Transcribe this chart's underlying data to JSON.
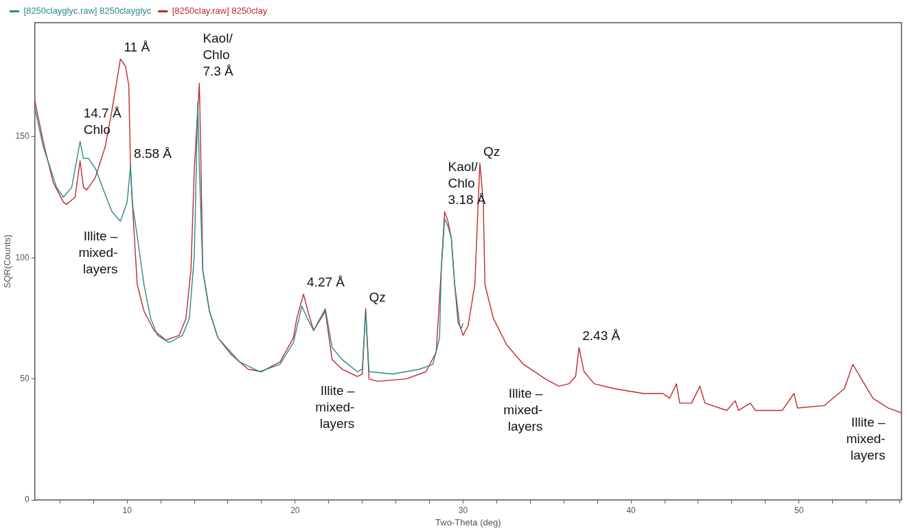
{
  "chart_data": {
    "type": "line",
    "xlabel": "Two-Theta (deg)",
    "ylabel": "SQR(Counts)",
    "xlim": [
      4.5,
      56.1
    ],
    "ylim": [
      0,
      197
    ],
    "xticks": [
      {
        "value": 6,
        "label": null
      },
      {
        "value": 8,
        "label": null
      },
      10,
      {
        "value": 12,
        "label": null
      },
      {
        "value": 14,
        "label": null
      },
      {
        "value": 16,
        "label": null
      },
      {
        "value": 18,
        "label": null
      },
      20,
      {
        "value": 22,
        "label": null
      },
      {
        "value": 24,
        "label": null
      },
      {
        "value": 26,
        "label": null
      },
      {
        "value": 28,
        "label": null
      },
      30,
      {
        "value": 32,
        "label": null
      },
      {
        "value": 34,
        "label": null
      },
      {
        "value": 36,
        "label": null
      },
      {
        "value": 38,
        "label": null
      },
      40,
      {
        "value": 42,
        "label": null
      },
      {
        "value": 44,
        "label": null
      },
      {
        "value": 46,
        "label": null
      },
      {
        "value": 48,
        "label": null
      },
      50,
      {
        "value": 52,
        "label": null
      },
      {
        "value": 54,
        "label": null
      },
      {
        "value": 56,
        "label": null
      }
    ],
    "yticks": [
      0,
      50,
      100,
      150
    ],
    "grid": false,
    "legend": "top left",
    "marker": "none",
    "line_style": "solid",
    "series": [
      {
        "name": "[8250clayglyc.raw] 8250clayglyc",
        "color": "#2a8a86",
        "x": [
          4.5,
          5.0,
          5.8,
          6.2,
          6.7,
          7.2,
          7.4,
          7.7,
          8.1,
          8.7,
          9.1,
          9.6,
          10.0,
          10.2,
          10.3,
          10.6,
          11.0,
          11.4,
          11.8,
          12.5,
          13.3,
          13.7,
          14.0,
          14.2,
          14.3,
          14.5,
          14.9,
          15.4,
          16.7,
          17.9,
          19.1,
          19.9,
          20.4,
          20.8,
          21.1,
          21.8,
          22.2,
          22.8,
          23.7,
          24.0,
          24.2,
          24.4,
          25.8,
          27.4,
          28.2,
          28.6,
          28.7,
          28.9,
          29.1,
          29.3,
          29.5,
          29.7,
          29.9,
          30.0
        ],
        "values": [
          162,
          146,
          129,
          125,
          129,
          148,
          141,
          141,
          137,
          126,
          119,
          115,
          123,
          138,
          123,
          109,
          89,
          75,
          68,
          65,
          68,
          75,
          101,
          164,
          137,
          95,
          78,
          67,
          57,
          53,
          56,
          65,
          80,
          74,
          70,
          79,
          63,
          58,
          53,
          54,
          78,
          53,
          52,
          54,
          56,
          67,
          95,
          116,
          113,
          108,
          89,
          73,
          71,
          73
        ]
      },
      {
        "name": "[8250clay.raw] 8250clay",
        "color": "#c1272d",
        "x": [
          4.5,
          5.0,
          5.6,
          6.2,
          6.4,
          6.9,
          7.2,
          7.4,
          7.6,
          8.1,
          8.7,
          9.1,
          9.6,
          9.9,
          10.1,
          10.2,
          10.4,
          10.6,
          11.0,
          11.6,
          12.3,
          13.1,
          13.5,
          13.8,
          14.0,
          14.3,
          14.4,
          14.5,
          14.9,
          15.4,
          16.2,
          17.2,
          18.0,
          19.1,
          19.9,
          20.1,
          20.5,
          20.8,
          21.1,
          21.8,
          22.2,
          22.8,
          23.7,
          24.0,
          24.2,
          24.4,
          24.9,
          26.6,
          27.8,
          28.4,
          28.7,
          28.9,
          29.1,
          29.3,
          29.5,
          29.8,
          30.0,
          30.3,
          30.7,
          30.9,
          31.0,
          31.2,
          31.3,
          31.8,
          32.6,
          33.6,
          34.9,
          35.7,
          36.3,
          36.7,
          36.9,
          37.2,
          37.8,
          39.0,
          40.7,
          41.9,
          42.3,
          42.7,
          42.9,
          43.6,
          44.1,
          44.4,
          45.7,
          46.2,
          46.4,
          47.1,
          47.4,
          49.0,
          49.7,
          49.9,
          51.5,
          52.7,
          53.2,
          53.8,
          54.4,
          55.3,
          56.1
        ],
        "values": [
          165,
          148,
          131,
          123,
          122,
          125,
          140,
          129,
          128,
          133,
          146,
          161,
          182,
          179,
          171,
          137,
          112,
          89,
          78,
          70,
          66,
          68,
          75,
          95,
          137,
          172,
          137,
          95,
          78,
          67,
          60,
          54,
          53,
          57,
          67,
          75,
          85,
          77,
          70,
          78,
          58,
          54,
          51,
          52,
          79,
          50,
          49,
          50,
          53,
          61,
          95,
          119,
          115,
          108,
          89,
          72,
          68,
          72,
          89,
          123,
          139,
          123,
          89,
          75,
          64,
          56,
          50,
          47,
          48,
          51,
          63,
          53,
          48,
          46,
          44,
          44,
          42,
          48,
          40,
          40,
          47,
          40,
          37,
          41,
          37,
          40,
          37,
          37,
          44,
          38,
          39,
          46,
          56,
          49,
          42,
          38,
          36
        ]
      }
    ],
    "annotations": [
      {
        "text": "Chlo",
        "x": 7.2,
        "y": 148
      },
      {
        "text": "14.7 Å",
        "x": 7.2,
        "y": 148
      },
      {
        "text": "11 Å",
        "x": 9.6,
        "y": 182
      },
      {
        "text": "7.3 Å",
        "x": 14.3,
        "y": 172
      },
      {
        "text": "Kaol/\nChlo",
        "x": 14.3,
        "y": 172
      },
      {
        "text": "8.58 Å",
        "x": 10.2,
        "y": 138
      },
      {
        "text": "Illite –\nmixed-\nlayers",
        "x": 9.6,
        "y": 115
      },
      {
        "text": "4.27 Å",
        "x": 20.5,
        "y": 85
      },
      {
        "text": "Qz",
        "x": 24.2,
        "y": 79
      },
      {
        "text": "3.18 Å",
        "x": 28.9,
        "y": 119
      },
      {
        "text": "Kaol/\nChlo",
        "x": 28.9,
        "y": 119
      },
      {
        "text": "Qz",
        "x": 31.0,
        "y": 139
      },
      {
        "text": "Illite –\nmixed-\nlayers",
        "x": 23.7,
        "y": 51
      },
      {
        "text": "Illite –\nmixed-\nlayers",
        "x": 34.9,
        "y": 50
      },
      {
        "text": "2.43 Å",
        "x": 36.9,
        "y": 63
      },
      {
        "text": "Illite –\nmixed-\nlayers",
        "x": 55.3,
        "y": 38
      }
    ]
  }
}
